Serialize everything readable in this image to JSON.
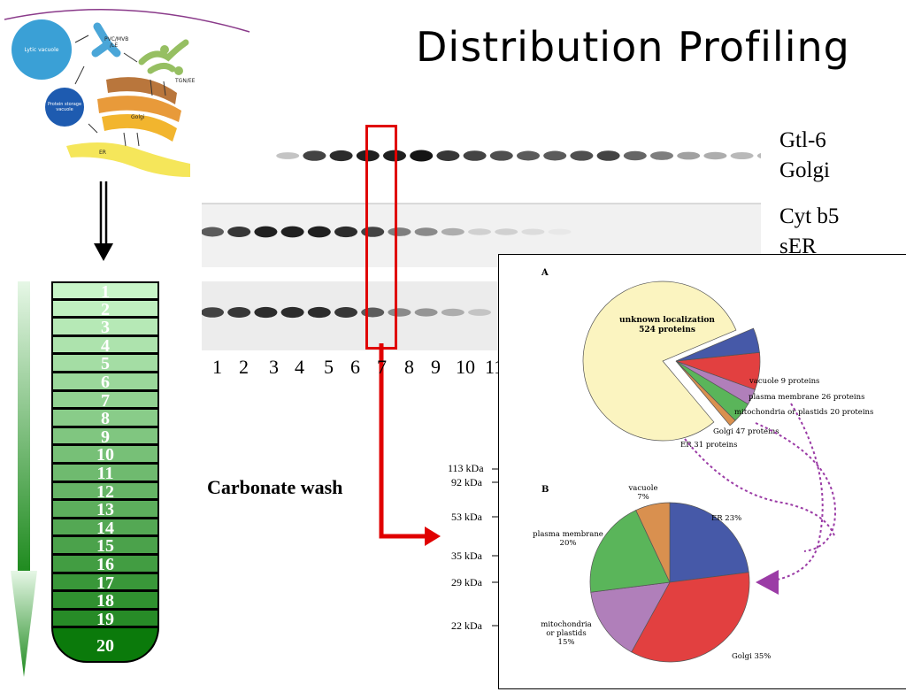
{
  "title": "Distribution Profiling",
  "cell_diagram": {
    "labels": {
      "lytic": "Lytic vacuole",
      "pvc": "PVC/MVB\n/LE",
      "tgn": "TGN/EE",
      "psv": "Protein storage\nvacuole",
      "golgi": "Golgi",
      "er": "ER"
    }
  },
  "blots": {
    "markers": [
      {
        "line1": "Gtl-6",
        "line2": "Golgi"
      },
      {
        "line1": "Cyt b5",
        "line2": "sER"
      }
    ],
    "lanes": [
      "1",
      "2",
      "3",
      "4",
      "5",
      "6",
      "7",
      "8",
      "9",
      "10",
      "11"
    ],
    "highlight_lane": "7",
    "band_strength": {
      "row1": [
        0,
        0.25,
        0.8,
        0.9,
        0.95,
        0.95,
        1,
        0.85,
        0.8,
        0.75,
        0.7,
        0.7,
        0.75,
        0.8,
        0.65,
        0.55,
        0.4,
        0.35,
        0.3,
        0.3,
        0.3
      ],
      "row2": [
        0.7,
        0.85,
        0.95,
        0.95,
        0.95,
        0.9,
        0.8,
        0.55,
        0.5,
        0.35,
        0.2,
        0.2,
        0.15,
        0.1,
        0,
        0,
        0,
        0,
        0,
        0,
        0
      ],
      "row3": [
        0.8,
        0.85,
        0.9,
        0.9,
        0.9,
        0.85,
        0.7,
        0.5,
        0.45,
        0.35,
        0.25,
        0,
        0,
        0,
        0,
        0,
        0,
        0,
        0,
        0,
        0
      ]
    }
  },
  "carbonate_wash": "Carbonate wash",
  "kda_markers": [
    "113 kDa",
    "92 kDa",
    "53 kDa",
    "35 kDa",
    "29 kDa",
    "22 kDa"
  ],
  "gradient": {
    "fractions": [
      "1",
      "2",
      "3",
      "4",
      "5",
      "6",
      "7",
      "8",
      "9",
      "10",
      "11",
      "12",
      "13",
      "14",
      "15",
      "16",
      "17",
      "18",
      "19",
      "20"
    ]
  },
  "chart_data": [
    {
      "type": "pie",
      "panel": "A",
      "slices": [
        {
          "label": "unknown localization",
          "detail": "524 proteins",
          "value": 524,
          "color": "#fbf4c0"
        },
        {
          "label": "vacuole",
          "detail": "9 proteins",
          "value": 9,
          "color": "#d9904f"
        },
        {
          "label": "plasma membrane",
          "detail": "26 proteins",
          "value": 26,
          "color": "#5ab55a"
        },
        {
          "label": "mitochondria or plastids",
          "detail": "20 proteins",
          "value": 20,
          "color": "#b07fba"
        },
        {
          "label": "Golgi",
          "detail": "47 proteins",
          "value": 47,
          "color": "#e24040"
        },
        {
          "label": "ER",
          "detail": "31 proteins",
          "value": 31,
          "color": "#4659a8"
        }
      ],
      "annotations": {
        "unknown": "unknown localization\n524 proteins",
        "vacuole": "vacuole 9 proteins",
        "pm": "plasma membrane 26 proteins",
        "mito": "mitochondria or plastids 20 proteins",
        "golgi": "Golgi 47 proteins",
        "er": "ER 31 proteins"
      }
    },
    {
      "type": "pie",
      "panel": "B",
      "slices": [
        {
          "label": "ER",
          "value": 23,
          "color": "#4659a8"
        },
        {
          "label": "Golgi",
          "value": 35,
          "color": "#e24040"
        },
        {
          "label": "mitochondria or plastids",
          "value": 15,
          "color": "#b07fba"
        },
        {
          "label": "plasma membrane",
          "value": 20,
          "color": "#5ab55a"
        },
        {
          "label": "vacuole",
          "value": 7,
          "color": "#d9904f"
        }
      ],
      "annotations": {
        "er": "ER 23%",
        "golgi": "Golgi 35%",
        "mito": "mitochondria\nor plastids\n15%",
        "pm": "plasma membrane\n20%",
        "vacuole": "vacuole\n7%"
      }
    }
  ],
  "colors": {
    "highlight": "#e00000",
    "curve": "#8a3a8a",
    "dotted_arrow": "#9b3ca6"
  }
}
